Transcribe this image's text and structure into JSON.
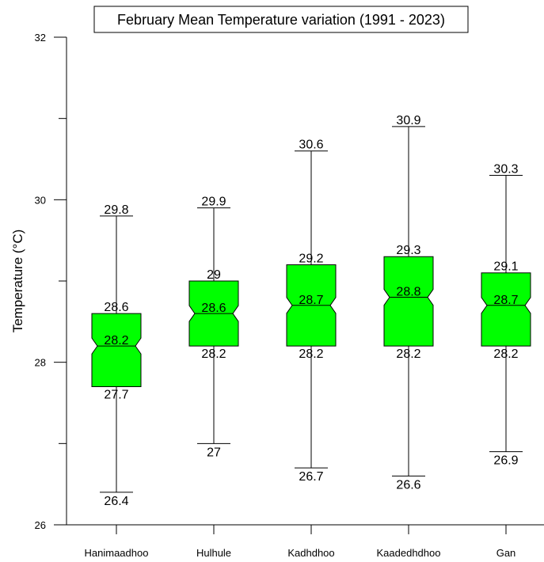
{
  "chart_data": {
    "type": "boxplot",
    "title": "February Mean Temperature variation (1991 - 2023)",
    "xlabel": "",
    "ylabel": "Temperature (°C)",
    "ylim": [
      26,
      32
    ],
    "yticks": [
      26,
      28,
      30,
      32
    ],
    "grid": false,
    "box_color": "#00ff00",
    "notched": true,
    "categories": [
      "Hanimaadhoo",
      "Hulhule",
      "Kadhdhoo",
      "Kaadedhdhoo",
      "Gan"
    ],
    "series": [
      {
        "category": "Hanimaadhoo",
        "min": 26.4,
        "q1": 27.7,
        "median": 28.2,
        "q3": 28.6,
        "max": 29.8,
        "labels": {
          "min": "26.4",
          "q1": "27.7",
          "median": "28.2",
          "q3": "28.6",
          "max": "29.8"
        }
      },
      {
        "category": "Hulhule",
        "min": 27.0,
        "q1": 28.2,
        "median": 28.6,
        "q3": 29.0,
        "max": 29.9,
        "labels": {
          "min": "27",
          "q1": "28.2",
          "median": "28.6",
          "q3": "29",
          "max": "29.9"
        }
      },
      {
        "category": "Kadhdhoo",
        "min": 26.7,
        "q1": 28.2,
        "median": 28.7,
        "q3": 29.2,
        "max": 30.6,
        "labels": {
          "min": "26.7",
          "q1": "28.2",
          "median": "28.7",
          "q3": "29.2",
          "max": "30.6"
        }
      },
      {
        "category": "Kaadedhdhoo",
        "min": 26.6,
        "q1": 28.2,
        "median": 28.8,
        "q3": 29.3,
        "max": 30.9,
        "labels": {
          "min": "26.6",
          "q1": "28.2",
          "median": "28.8",
          "q3": "29.3",
          "max": "30.9"
        }
      },
      {
        "category": "Gan",
        "min": 26.9,
        "q1": 28.2,
        "median": 28.7,
        "q3": 29.1,
        "max": 30.3,
        "labels": {
          "min": "26.9",
          "q1": "28.2",
          "median": "28.7",
          "q3": "29.1",
          "max": "30.3"
        }
      }
    ]
  }
}
